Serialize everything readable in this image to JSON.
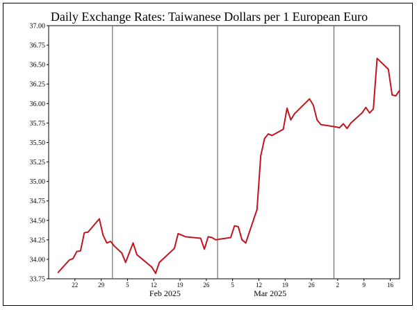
{
  "chart_data": {
    "type": "line",
    "title": "Daily Exchange Rates: Taiwanese Dollars per 1 European Euro",
    "xlabel": "",
    "ylabel": "",
    "ylim": [
      33.75,
      37.0
    ],
    "yticks": [
      "37.00",
      "36.75",
      "36.50",
      "36.25",
      "36.00",
      "35.75",
      "35.50",
      "35.25",
      "35.00",
      "34.75",
      "34.50",
      "34.25",
      "34.00",
      "33.75"
    ],
    "x_day_ticks": [
      "22",
      "29",
      "5",
      "12",
      "19",
      "26",
      "5",
      "12",
      "19",
      "26",
      "2",
      "9",
      "16"
    ],
    "month_labels": [
      "Feb 2025",
      "Mar 2025"
    ],
    "grid": "vertical lines at month boundaries",
    "line_color": "#c0141e",
    "series": [
      {
        "x": [
          "2025-01-17",
          "2025-01-20",
          "2025-01-21",
          "2025-01-22",
          "2025-01-23",
          "2025-01-24",
          "2025-01-25",
          "2025-01-28",
          "2025-01-29",
          "2025-01-30",
          "2025-01-31",
          "2025-02-01",
          "2025-02-03",
          "2025-02-04",
          "2025-02-06",
          "2025-02-07",
          "2025-02-10",
          "2025-02-11",
          "2025-02-12",
          "2025-02-13",
          "2025-02-17",
          "2025-02-18",
          "2025-02-19",
          "2025-02-20",
          "2025-02-24",
          "2025-02-25",
          "2025-02-26",
          "2025-02-27",
          "2025-02-28",
          "2025-03-04",
          "2025-03-05",
          "2025-03-06",
          "2025-03-07",
          "2025-03-08",
          "2025-03-11",
          "2025-03-12",
          "2025-03-13",
          "2025-03-14",
          "2025-03-15",
          "2025-03-18",
          "2025-03-19",
          "2025-03-20",
          "2025-03-21",
          "2025-03-25",
          "2025-03-26",
          "2025-03-27",
          "2025-03-28",
          "2025-04-01",
          "2025-04-02",
          "2025-04-03",
          "2025-04-04",
          "2025-04-05",
          "2025-04-08",
          "2025-04-09",
          "2025-04-10",
          "2025-04-11",
          "2025-04-12",
          "2025-04-15",
          "2025-04-16",
          "2025-04-17",
          "2025-04-18"
        ],
        "values": [
          33.83,
          33.99,
          34.01,
          34.1,
          34.11,
          34.34,
          34.35,
          34.52,
          34.31,
          34.21,
          34.23,
          34.17,
          34.08,
          33.96,
          34.21,
          34.06,
          33.94,
          33.9,
          33.82,
          33.96,
          34.14,
          34.33,
          34.31,
          34.29,
          34.27,
          34.13,
          34.29,
          34.28,
          34.25,
          34.28,
          34.43,
          34.42,
          34.25,
          34.21,
          34.64,
          35.33,
          35.55,
          35.61,
          35.59,
          35.67,
          35.94,
          35.79,
          35.87,
          36.06,
          35.98,
          35.79,
          35.73,
          35.7,
          35.69,
          35.74,
          35.68,
          35.75,
          35.88,
          35.95,
          35.88,
          35.93,
          36.58,
          36.44,
          36.11,
          36.1,
          36.17
        ]
      }
    ]
  }
}
